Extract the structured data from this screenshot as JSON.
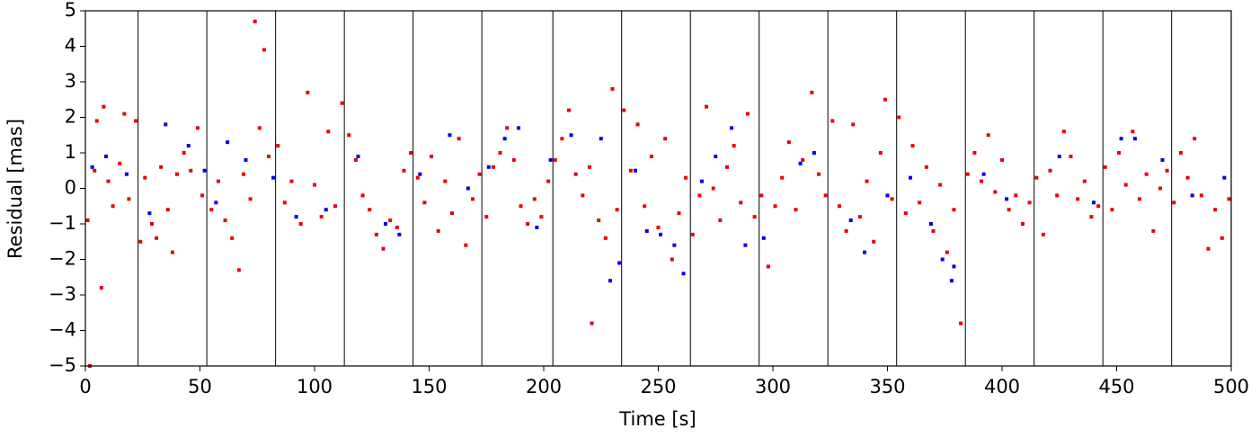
{
  "chart_data": {
    "type": "scatter",
    "x_label": "Time [s]",
    "y_label": "Residual [mas]",
    "xlim": [
      0,
      500
    ],
    "ylim": [
      -5,
      5
    ],
    "xticks": [
      0,
      50,
      100,
      150,
      200,
      250,
      300,
      350,
      400,
      450,
      500
    ],
    "yticks": [
      {
        "value": -5,
        "label": "−5"
      },
      {
        "value": -4,
        "label": "−4"
      },
      {
        "value": -3,
        "label": "−3"
      },
      {
        "value": -2,
        "label": "−2"
      },
      {
        "value": -1,
        "label": "−1"
      },
      0,
      1,
      2,
      3,
      4,
      5
    ],
    "grid": false,
    "vlines": [
      23,
      53,
      83,
      113,
      143,
      173,
      204,
      234,
      264,
      294,
      324,
      354,
      384,
      414,
      444,
      474
    ],
    "series": [
      {
        "color": "#e8000b",
        "x": [
          1,
          2,
          4,
          5,
          7,
          8,
          10,
          12,
          15,
          17,
          19,
          22,
          24,
          26,
          29,
          31,
          33,
          36,
          38,
          40,
          43,
          46,
          49,
          51,
          55,
          58,
          61,
          64,
          67,
          69,
          72,
          74,
          76,
          78,
          80,
          84,
          87,
          90,
          94,
          97,
          100,
          103,
          106,
          109,
          112,
          115,
          118,
          121,
          124,
          127,
          130,
          133,
          136,
          139,
          142,
          145,
          148,
          151,
          154,
          157,
          160,
          163,
          166,
          169,
          172,
          175,
          178,
          181,
          184,
          187,
          190,
          193,
          196,
          199,
          202,
          205,
          208,
          211,
          214,
          217,
          220,
          221,
          224,
          227,
          230,
          232,
          235,
          238,
          241,
          244,
          247,
          250,
          253,
          256,
          259,
          262,
          265,
          268,
          271,
          274,
          277,
          280,
          283,
          286,
          289,
          292,
          295,
          298,
          301,
          304,
          307,
          310,
          313,
          317,
          320,
          323,
          326,
          329,
          332,
          335,
          338,
          341,
          344,
          347,
          349,
          352,
          355,
          358,
          361,
          364,
          367,
          370,
          373,
          376,
          379,
          382,
          385,
          388,
          391,
          394,
          397,
          400,
          403,
          406,
          409,
          412,
          415,
          418,
          421,
          424,
          427,
          430,
          433,
          436,
          439,
          442,
          445,
          448,
          451,
          454,
          457,
          460,
          463,
          466,
          469,
          472,
          475,
          478,
          481,
          484,
          487,
          490,
          493,
          496,
          499
        ],
        "values": [
          -0.9,
          -5,
          0.5,
          1.9,
          -2.8,
          2.3,
          0.2,
          -0.5,
          0.7,
          2.1,
          -0.3,
          1.9,
          -1.5,
          0.3,
          -1.0,
          -1.4,
          0.6,
          -0.6,
          -1.8,
          0.4,
          1.0,
          0.5,
          1.7,
          -0.2,
          -0.6,
          0.2,
          -0.9,
          -1.4,
          -2.3,
          0.4,
          -0.3,
          4.7,
          1.7,
          3.9,
          0.9,
          1.2,
          -0.4,
          0.2,
          -1.0,
          2.7,
          0.1,
          -0.8,
          1.6,
          -0.5,
          2.4,
          1.5,
          0.8,
          -0.2,
          -0.6,
          -1.3,
          -1.7,
          -0.9,
          -1.1,
          0.5,
          1.0,
          0.3,
          -0.4,
          0.9,
          -1.2,
          0.2,
          -0.7,
          1.4,
          -1.6,
          -0.3,
          0.4,
          -0.8,
          0.6,
          1.0,
          1.7,
          0.8,
          -0.5,
          -1.0,
          -0.3,
          -0.8,
          0.2,
          0.8,
          1.4,
          2.2,
          0.4,
          -0.2,
          0.6,
          -3.8,
          -0.9,
          -1.4,
          2.8,
          -0.6,
          2.2,
          0.5,
          1.8,
          -0.5,
          0.9,
          -1.1,
          1.4,
          -2.0,
          -0.7,
          0.3,
          -1.3,
          -0.2,
          2.3,
          0.0,
          -0.9,
          0.6,
          1.2,
          -0.4,
          2.1,
          -0.8,
          -0.2,
          -2.2,
          -0.5,
          0.3,
          1.3,
          -0.6,
          0.8,
          2.7,
          0.4,
          -0.2,
          1.9,
          -0.5,
          -1.2,
          1.8,
          -0.8,
          0.2,
          -1.5,
          1.0,
          2.5,
          -0.3,
          2.0,
          -0.7,
          1.2,
          -0.4,
          0.6,
          -1.2,
          0.1,
          -1.8,
          -0.6,
          -3.8,
          0.4,
          1.0,
          0.2,
          1.5,
          -0.1,
          0.8,
          -0.6,
          -0.2,
          -1.0,
          -0.4,
          0.3,
          -1.3,
          0.5,
          -0.2,
          1.6,
          0.9,
          -0.3,
          0.2,
          -0.8,
          -0.5,
          0.6,
          -0.6,
          1.0,
          0.1,
          1.6,
          -0.3,
          0.4,
          -1.2,
          0.0,
          0.5,
          -0.4,
          1.0,
          0.3,
          1.4,
          -0.2,
          -1.7,
          -0.6,
          -1.4,
          -0.3
        ]
      },
      {
        "color": "#0000e8",
        "x": [
          3,
          9,
          18,
          28,
          35,
          45,
          52,
          57,
          62,
          70,
          82,
          92,
          105,
          119,
          131,
          137,
          146,
          159,
          167,
          176,
          183,
          189,
          197,
          203,
          212,
          225,
          229,
          233,
          240,
          245,
          251,
          257,
          261,
          269,
          275,
          282,
          288,
          296,
          312,
          318,
          334,
          340,
          350,
          360,
          369,
          374,
          378,
          379,
          392,
          402,
          425,
          440,
          452,
          458,
          470,
          483,
          497
        ],
        "values": [
          0.6,
          0.9,
          0.4,
          -0.7,
          1.8,
          1.2,
          0.5,
          -0.4,
          1.3,
          0.8,
          0.3,
          -0.8,
          -0.6,
          0.9,
          -1.0,
          -1.3,
          0.4,
          1.5,
          0.0,
          0.6,
          1.4,
          1.7,
          -1.1,
          0.8,
          1.5,
          1.4,
          -2.6,
          -2.1,
          0.5,
          -1.2,
          -1.3,
          -1.6,
          -2.4,
          0.2,
          0.9,
          1.7,
          -1.6,
          -1.4,
          0.7,
          1.0,
          -0.9,
          -1.8,
          -0.2,
          0.3,
          -1.0,
          -2.0,
          -2.6,
          -2.2,
          0.4,
          -0.3,
          0.9,
          -0.4,
          1.4,
          1.4,
          0.8,
          -0.2,
          0.3
        ]
      }
    ]
  }
}
